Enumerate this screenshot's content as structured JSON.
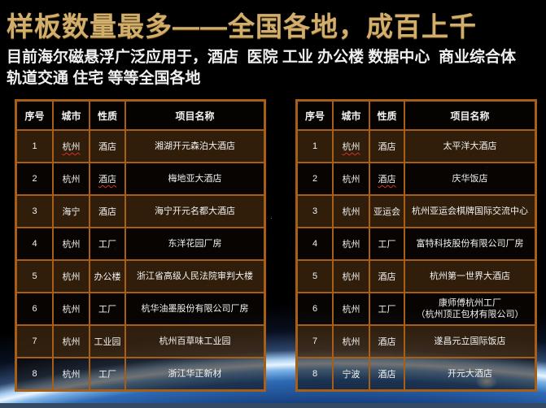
{
  "slide": {
    "title": "样板数量最多——全国各地，成百上千",
    "subtitle": "目前海尔磁悬浮广泛应用于，酒店  医院 工业 办公楼 数据中心  商业综合体\n轨道交通 住宅 等等全国各地",
    "colors": {
      "title_gold": "#d2ae6c",
      "table_border": "#a85e14",
      "header_bg": "rgba(5,3,0,0.92)",
      "row_odd": "rgba(58,36,13,0.82)",
      "row_even": "rgba(12,7,2,0.55)",
      "misspell_red": "#d93025"
    }
  },
  "tables": [
    {
      "headers": [
        "序号",
        "城市",
        "性质",
        "项目名称"
      ],
      "rows": [
        {
          "no": "1",
          "city": "杭州",
          "type": "酒店",
          "project": "湘湖开元森泊大酒店",
          "city_wavy": true
        },
        {
          "no": "2",
          "city": "杭州",
          "type": "酒店",
          "project": "梅地亚大酒店",
          "type_wavy": true
        },
        {
          "no": "3",
          "city": "海宁",
          "type": "酒店",
          "project": "海宁开元名都大酒店"
        },
        {
          "no": "4",
          "city": "杭州",
          "type": "工厂",
          "project": "东洋花园厂房"
        },
        {
          "no": "5",
          "city": "杭州",
          "type": "办公楼",
          "project": "浙江省高级人民法院审判大楼"
        },
        {
          "no": "6",
          "city": "杭州",
          "type": "工厂",
          "project": "杭华油墨股份有限公司厂房"
        },
        {
          "no": "7",
          "city": "杭州",
          "type": "工业园",
          "project": "杭州百草味工业园"
        },
        {
          "no": "8",
          "city": "杭州",
          "type": "工厂",
          "project": "浙江华正新材"
        }
      ]
    },
    {
      "headers": [
        "序号",
        "城市",
        "性质",
        "项目名称"
      ],
      "rows": [
        {
          "no": "1",
          "city": "杭州",
          "type": "酒店",
          "project": "太平洋大酒店",
          "city_wavy": true
        },
        {
          "no": "2",
          "city": "杭州",
          "type": "酒店",
          "project": "庆华饭店",
          "type_wavy": true
        },
        {
          "no": "3",
          "city": "杭州",
          "type": "亚运会",
          "project": "杭州亚运会棋牌国际交流中心"
        },
        {
          "no": "4",
          "city": "杭州",
          "type": "工厂",
          "project": "富特科技股份有限公司厂房"
        },
        {
          "no": "5",
          "city": "杭州",
          "type": "酒店",
          "project": "杭州第一世界大酒店"
        },
        {
          "no": "6",
          "city": "杭州",
          "type": "工厂",
          "project": "康师傅杭州工厂\n（杭州顶正包材有限公司）"
        },
        {
          "no": "7",
          "city": "杭州",
          "type": "酒店",
          "project": "遂昌元立国际饭店"
        },
        {
          "no": "8",
          "city": "宁波",
          "type": "酒店",
          "project": "开元大酒店"
        }
      ]
    }
  ]
}
